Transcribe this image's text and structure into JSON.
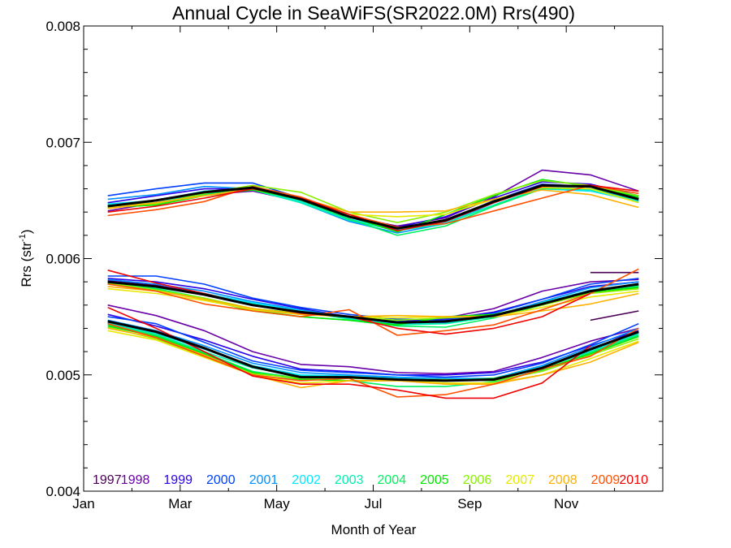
{
  "chart_data": {
    "type": "line",
    "title": "Annual Cycle in SeaWiFS(SR2022.0M) Rrs(490)",
    "xlabel": "Month of Year",
    "ylabel_base": "Rrs (str",
    "ylabel_sup": "-1",
    "ylabel_end": ")",
    "xlim": [
      0,
      12
    ],
    "ylim": [
      0.004,
      0.008
    ],
    "x_ticks": [
      {
        "value": 0,
        "label": "Jan"
      },
      {
        "value": 2,
        "label": "Mar"
      },
      {
        "value": 4,
        "label": "May"
      },
      {
        "value": 6,
        "label": "Jul"
      },
      {
        "value": 8,
        "label": "Sep"
      },
      {
        "value": 10,
        "label": "Nov"
      }
    ],
    "y_ticks": [
      {
        "value": 0.004,
        "label": "0.004"
      },
      {
        "value": 0.005,
        "label": "0.005"
      },
      {
        "value": 0.006,
        "label": "0.006"
      },
      {
        "value": 0.007,
        "label": "0.007"
      },
      {
        "value": 0.008,
        "label": "0.008"
      }
    ],
    "legend_placement": "bottom",
    "months_x": [
      0.5,
      1.5,
      2.5,
      3.5,
      4.5,
      5.5,
      6.5,
      7.5,
      8.5,
      9.5,
      10.5,
      11.5
    ],
    "series": [
      {
        "name": "1997",
        "color": "#4B0055",
        "top": [
          null,
          null,
          null,
          null,
          null,
          null,
          null,
          null,
          null,
          null,
          null,
          null
        ],
        "mid": [
          null,
          null,
          null,
          null,
          null,
          null,
          null,
          null,
          null,
          null,
          0.00588,
          0.00588
        ],
        "bot": [
          null,
          null,
          null,
          null,
          null,
          null,
          null,
          null,
          null,
          null,
          0.00547,
          0.00555
        ]
      },
      {
        "name": "1998",
        "color": "#6A00A8",
        "top": [
          0.00641,
          0.00648,
          0.00655,
          0.00658,
          0.00649,
          0.00636,
          0.00628,
          0.00635,
          0.00653,
          0.00676,
          0.00672,
          0.00658
        ],
        "mid": [
          0.00581,
          0.00577,
          0.0057,
          0.00561,
          0.00554,
          0.00549,
          0.00545,
          0.00549,
          0.00557,
          0.00572,
          0.0058,
          0.00582
        ],
        "bot": [
          0.0056,
          0.00551,
          0.00538,
          0.0052,
          0.00509,
          0.00507,
          0.00502,
          0.00501,
          0.00503,
          0.00515,
          0.00529,
          0.0054
        ]
      },
      {
        "name": "1999",
        "color": "#2A00E8",
        "top": [
          0.00648,
          0.00654,
          0.0066,
          0.0066,
          0.0065,
          0.00636,
          0.00627,
          0.00636,
          0.00652,
          0.00666,
          0.00664,
          0.00654
        ],
        "mid": [
          0.00583,
          0.0058,
          0.00574,
          0.00565,
          0.00557,
          0.0055,
          0.00546,
          0.00548,
          0.00554,
          0.00565,
          0.00576,
          0.0058
        ],
        "bot": [
          0.00552,
          0.00542,
          0.0053,
          0.00516,
          0.00505,
          0.00503,
          0.005,
          0.005,
          0.00502,
          0.00511,
          0.00525,
          0.00538
        ]
      },
      {
        "name": "2000",
        "color": "#0040FF",
        "top": [
          0.00654,
          0.0066,
          0.00665,
          0.00665,
          0.00652,
          0.00634,
          0.00624,
          0.00632,
          0.0065,
          0.00664,
          0.00662,
          0.00652
        ],
        "mid": [
          0.00585,
          0.00585,
          0.00578,
          0.00566,
          0.00558,
          0.00552,
          0.00548,
          0.00547,
          0.00553,
          0.00565,
          0.00578,
          0.00583
        ],
        "bot": [
          0.0055,
          0.00544,
          0.00528,
          0.00512,
          0.00504,
          0.00502,
          0.005,
          0.00498,
          0.005,
          0.0051,
          0.00526,
          0.00544
        ]
      },
      {
        "name": "2001",
        "color": "#0090FF",
        "top": [
          0.00651,
          0.00655,
          0.00662,
          0.0066,
          0.00648,
          0.00632,
          0.00622,
          0.0063,
          0.00648,
          0.00662,
          0.0066,
          0.0065
        ],
        "mid": [
          0.00582,
          0.00578,
          0.00572,
          0.00563,
          0.00556,
          0.0055,
          0.00546,
          0.00545,
          0.00551,
          0.00563,
          0.00575,
          0.0058
        ],
        "bot": [
          0.00547,
          0.00538,
          0.00525,
          0.0051,
          0.00502,
          0.005,
          0.00498,
          0.00497,
          0.00497,
          0.00508,
          0.00524,
          0.0054
        ]
      },
      {
        "name": "2002",
        "color": "#00E8FF",
        "top": [
          0.00647,
          0.0065,
          0.00658,
          0.0066,
          0.00649,
          0.00634,
          0.00625,
          0.00631,
          0.00646,
          0.0066,
          0.00658,
          0.00649
        ],
        "mid": [
          0.0058,
          0.00576,
          0.0057,
          0.00562,
          0.00555,
          0.00549,
          0.00544,
          0.00544,
          0.0055,
          0.00562,
          0.00573,
          0.00578
        ],
        "bot": [
          0.00545,
          0.00536,
          0.00522,
          0.00508,
          0.005,
          0.00499,
          0.00497,
          0.00496,
          0.00497,
          0.00507,
          0.00521,
          0.00536
        ]
      },
      {
        "name": "2003",
        "color": "#00F0B0",
        "top": [
          0.00646,
          0.00648,
          0.00656,
          0.00659,
          0.00648,
          0.00633,
          0.00624,
          0.0063,
          0.00646,
          0.00661,
          0.00659,
          0.0065
        ],
        "mid": [
          0.00579,
          0.00575,
          0.00569,
          0.00561,
          0.00554,
          0.00548,
          0.00543,
          0.00544,
          0.0055,
          0.00562,
          0.00572,
          0.00577
        ],
        "bot": [
          0.00544,
          0.00535,
          0.0052,
          0.00506,
          0.00499,
          0.00498,
          0.00496,
          0.00495,
          0.00496,
          0.00506,
          0.0052,
          0.00535
        ]
      },
      {
        "name": "2004",
        "color": "#00F060",
        "top": [
          0.00645,
          0.00647,
          0.00655,
          0.0066,
          0.0065,
          0.00634,
          0.0062,
          0.00628,
          0.00645,
          0.0066,
          0.0066,
          0.00652
        ],
        "mid": [
          0.00579,
          0.00574,
          0.00566,
          0.00556,
          0.0055,
          0.00547,
          0.00542,
          0.00541,
          0.00549,
          0.0056,
          0.00571,
          0.00576
        ],
        "bot": [
          0.00543,
          0.00534,
          0.00519,
          0.00503,
          0.00497,
          0.00495,
          0.0049,
          0.0049,
          0.00494,
          0.00504,
          0.00519,
          0.00534
        ]
      },
      {
        "name": "2005",
        "color": "#00E800",
        "top": [
          0.00644,
          0.00646,
          0.00654,
          0.00659,
          0.00651,
          0.00636,
          0.00623,
          0.00638,
          0.00654,
          0.00668,
          0.00662,
          0.00653
        ],
        "mid": [
          0.00578,
          0.00573,
          0.00565,
          0.00555,
          0.0055,
          0.00547,
          0.00543,
          0.0055,
          0.00552,
          0.00561,
          0.00571,
          0.00575
        ],
        "bot": [
          0.00542,
          0.00533,
          0.00518,
          0.00502,
          0.00496,
          0.00495,
          0.00495,
          0.00495,
          0.00497,
          0.00505,
          0.00518,
          0.00533
        ]
      },
      {
        "name": "2006",
        "color": "#88F000",
        "top": [
          0.00645,
          0.00647,
          0.00656,
          0.00663,
          0.00657,
          0.0064,
          0.00631,
          0.0064,
          0.00655,
          0.00667,
          0.00663,
          0.00654
        ],
        "mid": [
          0.00579,
          0.00573,
          0.00566,
          0.00557,
          0.00553,
          0.0055,
          0.00547,
          0.00549,
          0.00551,
          0.0056,
          0.0057,
          0.00574
        ],
        "bot": [
          0.00541,
          0.00531,
          0.00516,
          0.00501,
          0.00497,
          0.00497,
          0.00496,
          0.00496,
          0.00495,
          0.00503,
          0.00517,
          0.00531
        ]
      },
      {
        "name": "2007",
        "color": "#E8E800",
        "top": [
          0.00644,
          0.00648,
          0.00654,
          0.0066,
          0.00652,
          0.00638,
          0.00636,
          0.00638,
          0.00651,
          0.00661,
          0.0066,
          0.00648
        ],
        "mid": [
          0.00574,
          0.0057,
          0.00564,
          0.00556,
          0.00552,
          0.0055,
          0.00549,
          0.0055,
          0.0055,
          0.00558,
          0.00567,
          0.00572
        ],
        "bot": [
          0.00538,
          0.0053,
          0.00515,
          0.005,
          0.00493,
          0.00495,
          0.00495,
          0.00493,
          0.00493,
          0.005,
          0.00514,
          0.00529
        ]
      },
      {
        "name": "2008",
        "color": "#FFB000",
        "top": [
          0.00643,
          0.00648,
          0.00654,
          0.0066,
          0.00652,
          0.0064,
          0.0064,
          0.00641,
          0.00651,
          0.00659,
          0.00655,
          0.00644
        ],
        "mid": [
          0.00576,
          0.00572,
          0.00565,
          0.00557,
          0.00552,
          0.0055,
          0.00551,
          0.0055,
          0.0055,
          0.00555,
          0.00561,
          0.0057
        ],
        "bot": [
          0.0054,
          0.00532,
          0.00517,
          0.005,
          0.00489,
          0.00495,
          0.00495,
          0.00492,
          0.00492,
          0.005,
          0.00511,
          0.00528
        ]
      },
      {
        "name": "2009",
        "color": "#FF5000",
        "top": [
          0.00637,
          0.00642,
          0.00649,
          0.00662,
          0.00653,
          0.00638,
          0.00627,
          0.0063,
          0.00641,
          0.00652,
          0.00663,
          0.00656
        ],
        "mid": [
          0.00578,
          0.00572,
          0.00561,
          0.00555,
          0.0055,
          0.00556,
          0.00534,
          0.00538,
          0.00543,
          0.00556,
          0.0057,
          0.00591
        ],
        "bot": [
          0.00544,
          0.00532,
          0.00516,
          0.005,
          0.00495,
          0.00497,
          0.00481,
          0.00483,
          0.00492,
          0.00505,
          0.00516,
          0.0054
        ]
      },
      {
        "name": "2010",
        "color": "#F00000",
        "top": [
          0.0064,
          0.00645,
          0.00652,
          0.0066,
          0.00652,
          0.00638,
          0.00624,
          0.00632,
          0.00648,
          0.00662,
          0.00663,
          0.00658
        ],
        "mid": [
          0.0059,
          0.00579,
          0.0057,
          0.0056,
          0.00553,
          0.0055,
          0.0054,
          0.00535,
          0.0054,
          0.0055,
          0.0057,
          null
        ],
        "bot": [
          0.00558,
          0.0054,
          0.0052,
          0.00499,
          0.00492,
          0.00492,
          0.00487,
          0.0048,
          0.0048,
          0.00493,
          0.00525,
          null
        ]
      },
      {
        "name": "",
        "color": "#000000",
        "width": 3,
        "top": [
          0.00645,
          0.0065,
          0.00657,
          0.00661,
          0.00651,
          0.00636,
          0.00626,
          0.00633,
          0.00649,
          0.00663,
          0.00662,
          0.00651
        ],
        "mid": [
          0.0058,
          0.00576,
          0.00569,
          0.0056,
          0.00554,
          0.0055,
          0.00545,
          0.00546,
          0.00551,
          0.00561,
          0.00572,
          0.00578
        ],
        "bot": [
          0.00546,
          0.00537,
          0.00523,
          0.00507,
          0.00498,
          0.00498,
          0.00496,
          0.00495,
          0.00496,
          0.00506,
          0.00522,
          0.00537
        ]
      }
    ]
  }
}
